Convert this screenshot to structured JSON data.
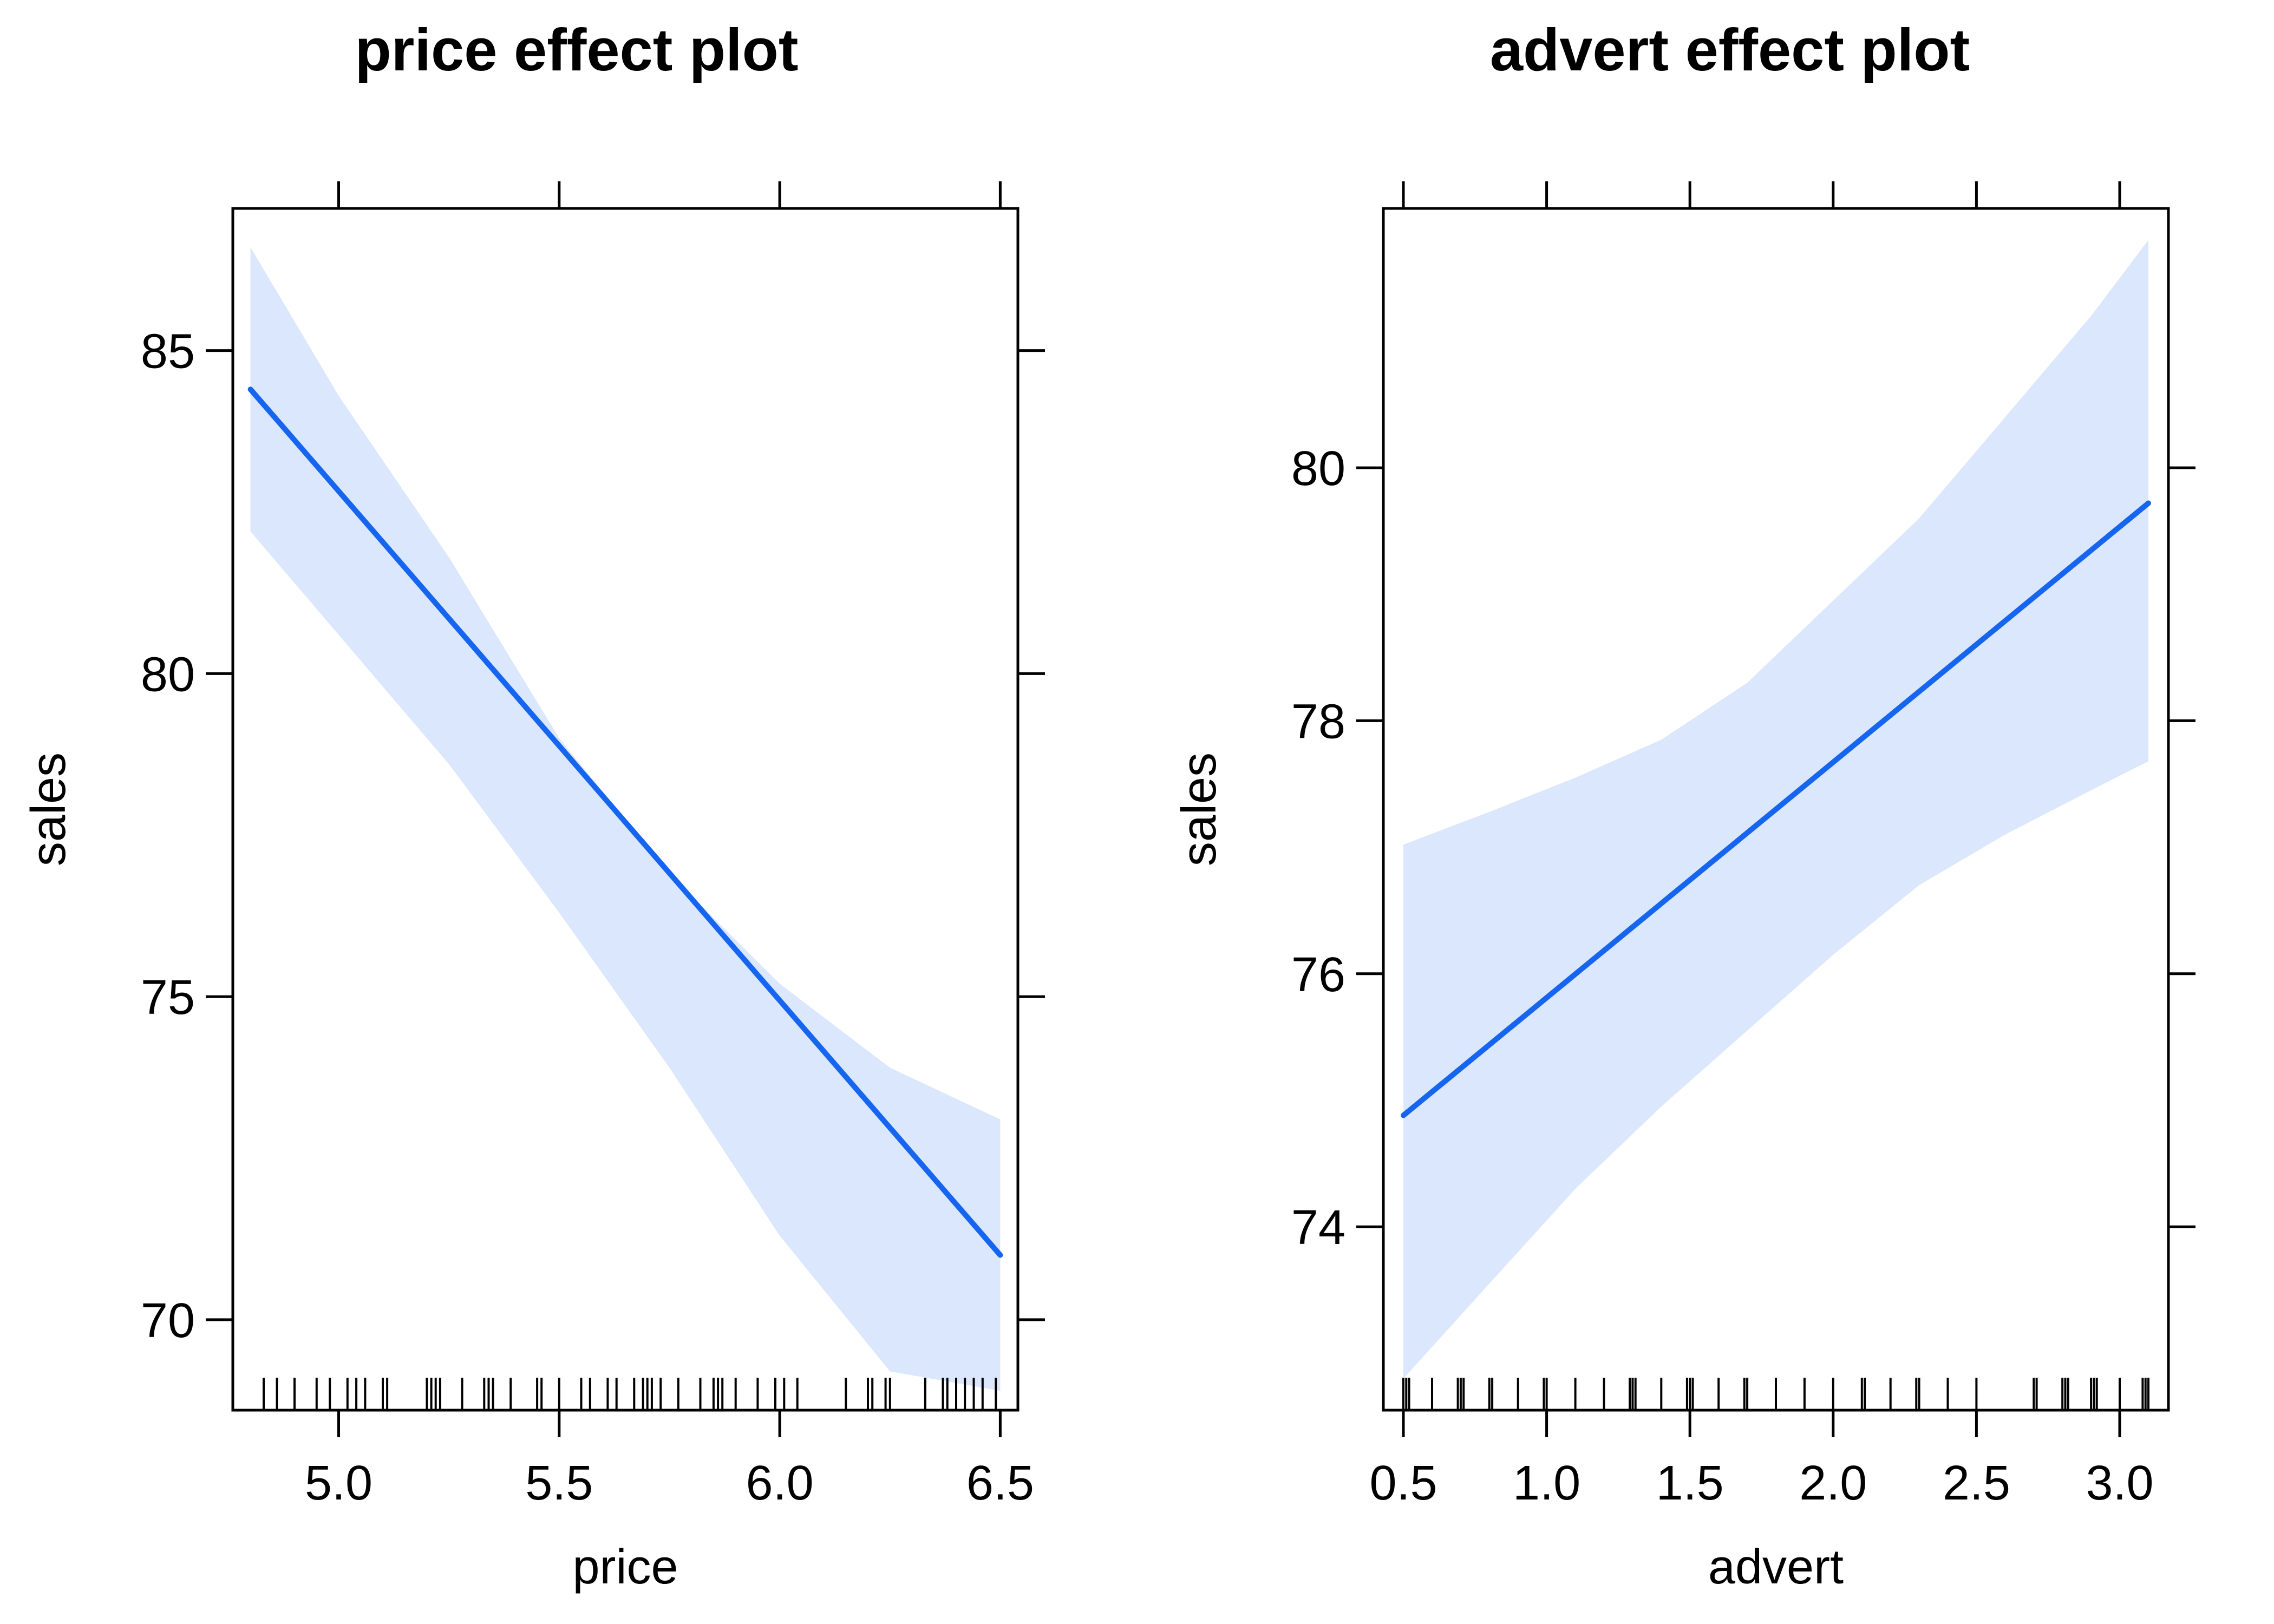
{
  "chart_data": [
    {
      "type": "line",
      "title": "price effect plot",
      "xlabel": "price",
      "ylabel": "sales",
      "xlim": [
        4.76,
        6.54
      ],
      "ylim": [
        68.6,
        87.2
      ],
      "xticks": [
        5.0,
        5.5,
        6.0,
        6.5
      ],
      "xtick_labels": [
        "5.0",
        "5.5",
        "6.0",
        "6.5"
      ],
      "yticks": [
        70,
        75,
        80,
        85
      ],
      "ytick_labels": [
        "70",
        "75",
        "80",
        "85"
      ],
      "grid": false,
      "series": [
        {
          "x": [
            4.8,
            6.5
          ],
          "y": [
            84.4,
            71.0
          ],
          "band": {
            "x": [
              4.8,
              5.0,
              5.25,
              5.5,
              5.75,
              6.0,
              6.25,
              6.5
            ],
            "lower": [
              82.2,
              80.6,
              78.6,
              76.3,
              73.9,
              71.3,
              69.2,
              68.9
            ],
            "upper": [
              86.6,
              84.3,
              81.8,
              79.0,
              76.9,
              75.2,
              73.9,
              73.1
            ]
          }
        }
      ],
      "rug": [
        4.83,
        4.86,
        4.9,
        4.95,
        4.98,
        5.02,
        5.04,
        5.06,
        5.1,
        5.11,
        5.2,
        5.21,
        5.22,
        5.23,
        5.28,
        5.33,
        5.34,
        5.35,
        5.39,
        5.45,
        5.46,
        5.5,
        5.55,
        5.57,
        5.61,
        5.63,
        5.67,
        5.69,
        5.7,
        5.71,
        5.73,
        5.77,
        5.82,
        5.85,
        5.86,
        5.87,
        5.9,
        5.95,
        5.99,
        6.01,
        6.04,
        6.15,
        6.2,
        6.21,
        6.24,
        6.25,
        6.33,
        6.37,
        6.38,
        6.4,
        6.42,
        6.44,
        6.46,
        6.49
      ]
    },
    {
      "type": "line",
      "title": "advert effect plot",
      "xlabel": "advert",
      "ylabel": "sales",
      "xlim": [
        0.43,
        3.17
      ],
      "ylim": [
        72.55,
        82.05
      ],
      "xticks": [
        0.5,
        1.0,
        1.5,
        2.0,
        2.5,
        3.0
      ],
      "xtick_labels": [
        "0.5",
        "1.0",
        "1.5",
        "2.0",
        "2.5",
        "3.0"
      ],
      "yticks": [
        74,
        76,
        78,
        80
      ],
      "ytick_labels": [
        "74",
        "76",
        "78",
        "80"
      ],
      "grid": false,
      "series": [
        {
          "x": [
            0.5,
            3.1
          ],
          "y": [
            74.88,
            79.72
          ],
          "band": {
            "x": [
              0.5,
              0.8,
              1.1,
              1.4,
              1.7,
              2.0,
              2.3,
              2.6,
              2.9,
              3.1
            ],
            "lower": [
              72.8,
              73.55,
              74.3,
              74.95,
              75.55,
              76.15,
              76.7,
              77.1,
              77.45,
              77.68
            ],
            "upper": [
              77.02,
              77.28,
              77.55,
              77.85,
              78.3,
              78.95,
              79.6,
              80.4,
              81.2,
              81.8
            ]
          }
        }
      ],
      "rug": [
        0.5,
        0.51,
        0.52,
        0.6,
        0.69,
        0.7,
        0.71,
        0.8,
        0.81,
        0.9,
        0.99,
        1.0,
        1.1,
        1.2,
        1.29,
        1.3,
        1.31,
        1.4,
        1.49,
        1.5,
        1.51,
        1.6,
        1.69,
        1.7,
        1.8,
        1.9,
        2.0,
        2.1,
        2.11,
        2.2,
        2.29,
        2.3,
        2.4,
        2.5,
        2.7,
        2.71,
        2.8,
        2.81,
        2.82,
        2.9,
        2.91,
        2.92,
        3.0,
        3.08,
        3.09,
        3.1
      ]
    }
  ],
  "colors": {
    "line": "#1565F0",
    "band": "#DBE7FC",
    "frame": "#000000"
  }
}
